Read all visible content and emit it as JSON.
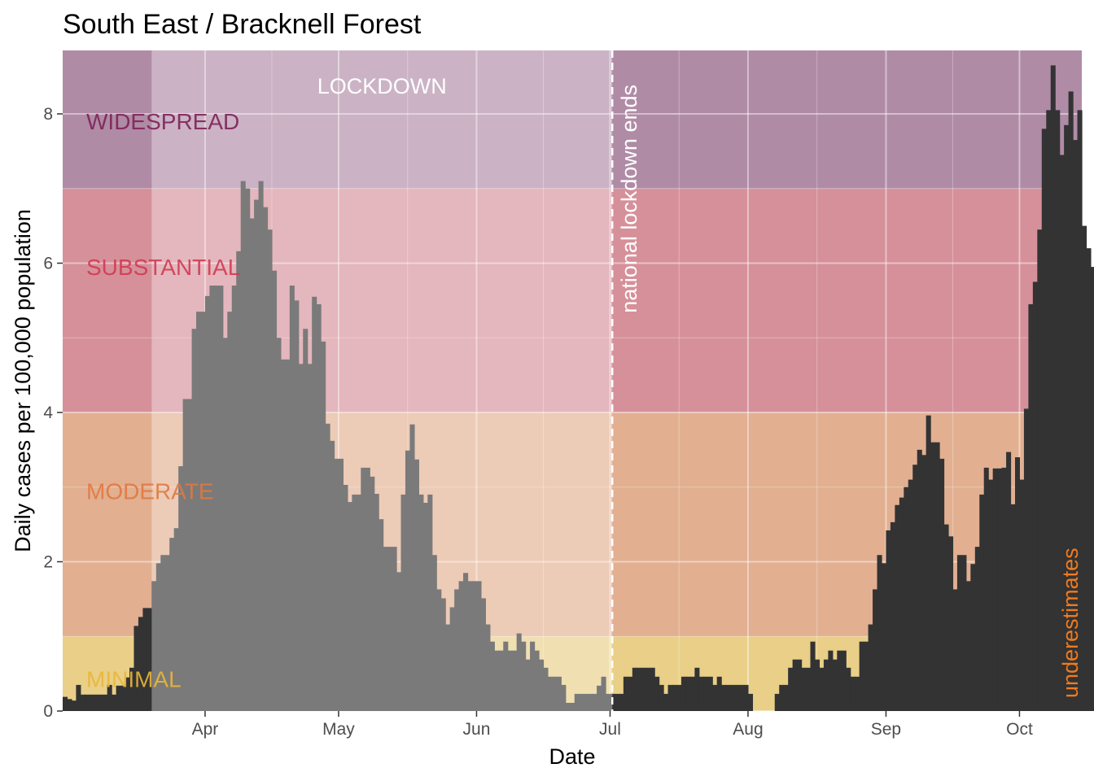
{
  "chart_data": {
    "type": "bar",
    "title": "South East / Bracknell Forest",
    "xlabel": "Date",
    "ylabel": "Daily cases per 100,000 population",
    "x_ticks": [
      {
        "label": "Apr",
        "day": 32
      },
      {
        "label": "May",
        "day": 62
      },
      {
        "label": "Jun",
        "day": 93
      },
      {
        "label": "Jul",
        "day": 123
      },
      {
        "label": "Aug",
        "day": 154
      },
      {
        "label": "Sep",
        "day": 185
      },
      {
        "label": "Oct",
        "day": 215
      }
    ],
    "y_ticks": [
      0,
      2,
      4,
      6,
      8
    ],
    "xlim": [
      0,
      229
    ],
    "ylim": [
      0,
      8.85
    ],
    "grid": true,
    "start_date": "2020-03-01",
    "colors": {
      "bar": "#333333",
      "minimal": "#e9cf87",
      "moderate": "#e2af91",
      "substantial": "#d6909a",
      "widespread": "#b08ba6",
      "lockdown_overlay": "#ffffff",
      "underestimates": "#f07a1e"
    },
    "bands": [
      {
        "label": "MINIMAL",
        "from": 0,
        "to": 1,
        "color": "#e9cf87",
        "text_color": "#e9b63a"
      },
      {
        "label": "MODERATE",
        "from": 1,
        "to": 4,
        "color": "#e2af91",
        "text_color": "#e0793f"
      },
      {
        "label": "SUBSTANTIAL",
        "from": 4,
        "to": 7,
        "color": "#d6909a",
        "text_color": "#cf3b52"
      },
      {
        "label": "WIDESPREAD",
        "from": 7,
        "to": 8.85,
        "color": "#b08ba6",
        "text_color": "#7e2158"
      }
    ],
    "lockdown": {
      "label": "LOCKDOWN",
      "start_day": 20,
      "end_day": 123.5
    },
    "lockdown_end_line": {
      "label": "national lockdown ends",
      "day": 123.5
    },
    "underestimates": {
      "label": "underestimates"
    },
    "values": [
      0.19,
      0.16,
      0.14,
      0.35,
      0.22,
      0.22,
      0.22,
      0.22,
      0.22,
      0.22,
      0.35,
      0.22,
      0.34,
      0.34,
      0.45,
      0.58,
      1.14,
      1.26,
      1.38,
      1.38,
      1.74,
      1.98,
      2.09,
      2.09,
      2.32,
      2.45,
      3.28,
      4.18,
      4.18,
      5.12,
      5.35,
      5.35,
      5.56,
      5.7,
      5.7,
      5.7,
      5.0,
      5.35,
      5.7,
      6.16,
      7.1,
      7.0,
      6.6,
      6.85,
      7.1,
      6.75,
      6.45,
      5.9,
      5.0,
      4.71,
      4.71,
      5.7,
      5.5,
      4.65,
      5.12,
      4.65,
      5.55,
      5.45,
      4.95,
      3.85,
      3.62,
      3.38,
      3.38,
      3.03,
      2.8,
      2.9,
      2.9,
      3.26,
      3.26,
      3.14,
      2.91,
      2.57,
      2.2,
      2.2,
      2.2,
      1.86,
      2.9,
      3.49,
      3.84,
      3.37,
      2.9,
      2.79,
      2.9,
      2.09,
      1.63,
      1.51,
      1.16,
      1.39,
      1.63,
      1.74,
      1.85,
      1.74,
      1.74,
      1.74,
      1.51,
      1.16,
      0.93,
      0.81,
      0.81,
      0.93,
      0.81,
      0.81,
      1.04,
      0.93,
      0.69,
      0.93,
      0.81,
      0.69,
      0.58,
      0.46,
      0.46,
      0.46,
      0.35,
      0.11,
      0.11,
      0.23,
      0.23,
      0.23,
      0.23,
      0.23,
      0.34,
      0.46,
      0.23,
      0.23,
      0.23,
      0.23,
      0.46,
      0.46,
      0.58,
      0.58,
      0.58,
      0.58,
      0.58,
      0.46,
      0.35,
      0.23,
      0.35,
      0.35,
      0.35,
      0.46,
      0.46,
      0.46,
      0.58,
      0.46,
      0.46,
      0.46,
      0.35,
      0.46,
      0.35,
      0.35,
      0.35,
      0.35,
      0.35,
      0.35,
      0.23,
      0.0,
      0.0,
      0.0,
      0.0,
      0.0,
      0.23,
      0.35,
      0.35,
      0.58,
      0.69,
      0.69,
      0.58,
      0.58,
      0.93,
      0.69,
      0.58,
      0.69,
      0.81,
      0.69,
      0.81,
      0.81,
      0.58,
      0.46,
      0.46,
      0.93,
      0.93,
      1.16,
      1.63,
      2.09,
      1.98,
      2.42,
      2.53,
      2.76,
      2.86,
      3.0,
      3.1,
      3.3,
      3.5,
      3.43,
      3.96,
      3.6,
      3.6,
      3.38,
      2.5,
      2.34,
      1.63,
      2.09,
      2.09,
      1.74,
      1.97,
      2.2,
      2.9,
      3.26,
      3.1,
      3.25,
      3.25,
      3.26,
      3.47,
      2.77,
      3.4,
      3.1,
      4.05,
      5.45,
      5.75,
      6.45,
      7.8,
      8.05,
      8.65,
      8.05,
      7.45,
      7.85,
      8.3,
      7.65,
      8.05,
      6.5,
      6.2,
      5.95,
      6.05,
      5.95,
      6.2,
      5.9
    ]
  }
}
